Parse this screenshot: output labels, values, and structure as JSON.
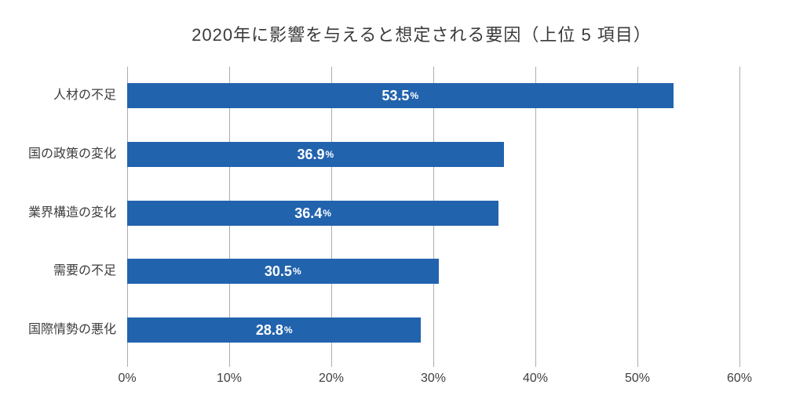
{
  "chart_data": {
    "type": "bar",
    "orientation": "horizontal",
    "title": "2020年に影響を与えると想定される要因（上位 5 項目）",
    "categories": [
      "人材の不足",
      "国の政策の変化",
      "業界構造の変化",
      "需要の不足",
      "国際情勢の悪化"
    ],
    "values": [
      53.5,
      36.9,
      36.4,
      30.5,
      28.8
    ],
    "value_labels": [
      "53.5",
      "36.9",
      "36.4",
      "30.5",
      "28.8"
    ],
    "unit": "%",
    "x_ticks": [
      "0%",
      "10%",
      "20%",
      "30%",
      "40%",
      "50%",
      "60%"
    ],
    "xlim": [
      0,
      60
    ],
    "grid": true,
    "legend": false,
    "colors": {
      "bar": "#2263ae",
      "gridline": "#adadad",
      "value_label": "#ffffff",
      "title_text": "#3a3a3a",
      "axis_text": "#3f3f3f"
    }
  }
}
